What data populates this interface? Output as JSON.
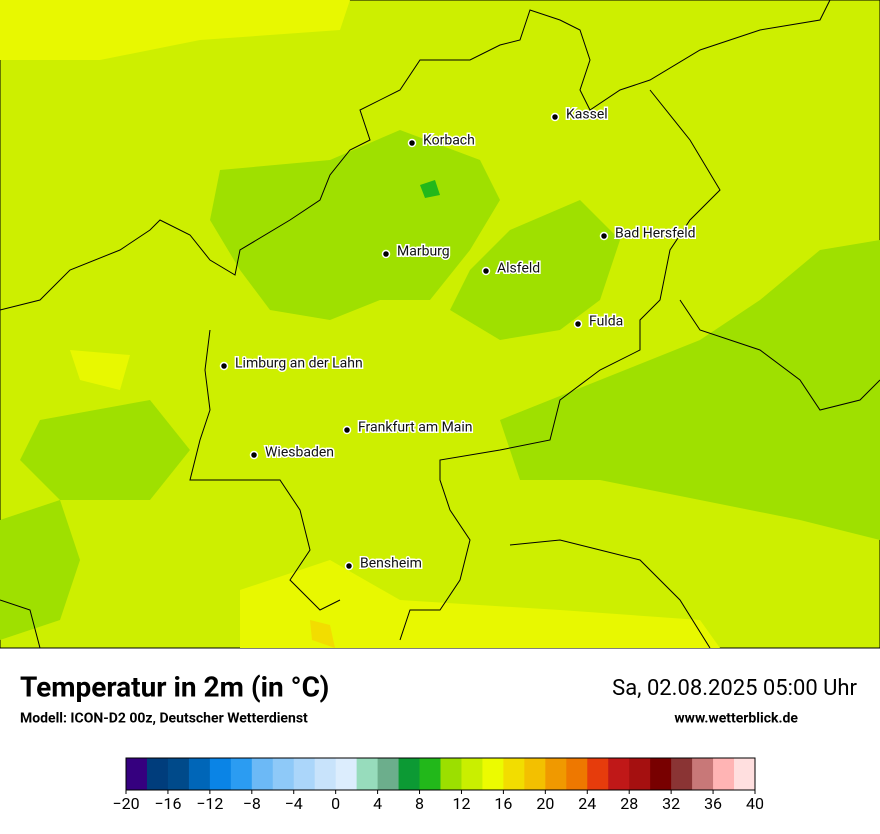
{
  "map": {
    "cities": [
      "Kassel",
      "Korbach",
      "Bad Hersfeld",
      "Marburg",
      "Alsfeld",
      "Fulda",
      "Limburg an der Lahn",
      "Frankfurt am Main",
      "Wiesbaden",
      "Bensheim"
    ]
  },
  "title": "Temperatur in 2m (in °C)",
  "subtitle": "Modell: ICON-D2 00z, Deutscher Wetterdienst",
  "date": "Sa, 02.08.2025 05:00 Uhr",
  "website": "www.wetterblick.de",
  "colorbar": {
    "lim": [
      -20,
      40
    ],
    "colors": [
      "#35007f",
      "#003d7c",
      "#004a8a",
      "#0066b8",
      "#0a84e6",
      "#2b9cf2",
      "#6cb9f6",
      "#8ec9f8",
      "#abd6fa",
      "#c8e3fb",
      "#dcedfd",
      "#97dcbc",
      "#6cae8c",
      "#0c9a34",
      "#22b81a",
      "#9cdf00",
      "#c9ef00",
      "#ecfb00",
      "#f2dd00",
      "#f3c000",
      "#f09900",
      "#ee7800",
      "#e63c0c",
      "#c01818",
      "#a51010",
      "#780000",
      "#8a3434",
      "#c87878",
      "#ffb4b4",
      "#ffdfdf"
    ],
    "ticks": [
      {
        "value": -20,
        "label": "−20"
      },
      {
        "value": -16,
        "label": "−16"
      },
      {
        "value": -12,
        "label": "−12"
      },
      {
        "value": -8,
        "label": "−8"
      },
      {
        "value": -4,
        "label": "−4"
      },
      0,
      4,
      8,
      12,
      16,
      20,
      24,
      28,
      32,
      36,
      40
    ]
  }
}
